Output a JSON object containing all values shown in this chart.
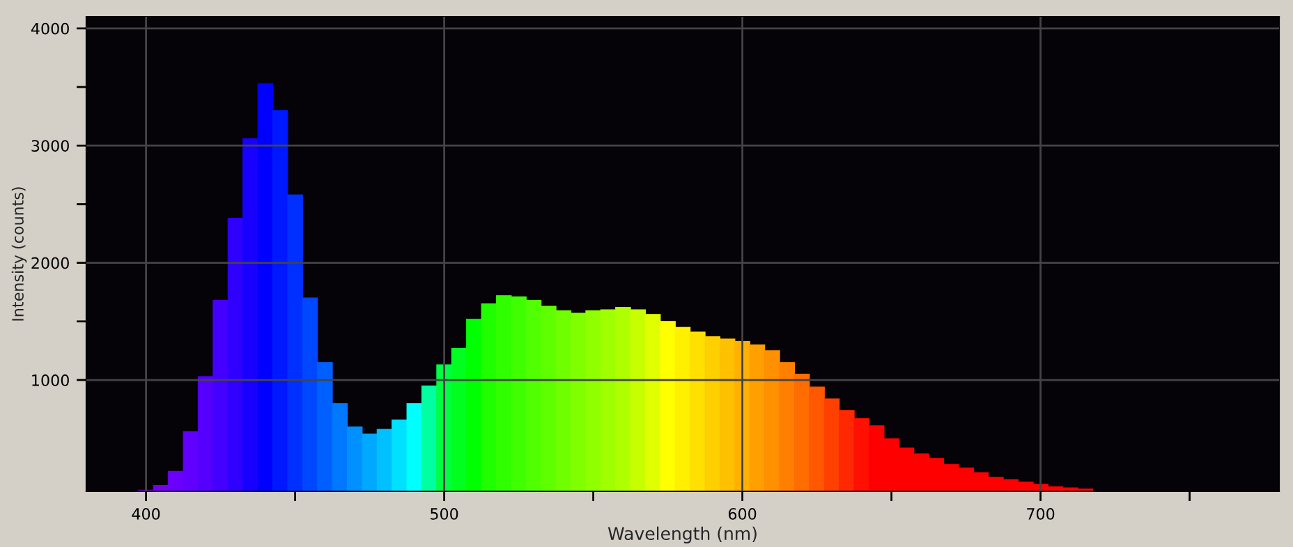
{
  "chart_data": {
    "type": "bar",
    "xlabel": "Wavelength (nm)",
    "ylabel": "Intensity (counts)",
    "x": [
      400,
      405,
      410,
      415,
      420,
      425,
      430,
      435,
      440,
      445,
      450,
      455,
      460,
      465,
      470,
      475,
      480,
      485,
      490,
      495,
      500,
      505,
      510,
      515,
      520,
      525,
      530,
      535,
      540,
      545,
      550,
      555,
      560,
      565,
      570,
      575,
      580,
      585,
      590,
      595,
      600,
      605,
      610,
      615,
      620,
      625,
      630,
      635,
      640,
      645,
      650,
      655,
      660,
      665,
      670,
      675,
      680,
      685,
      690,
      695,
      700,
      705,
      710,
      715
    ],
    "values": [
      60,
      100,
      220,
      560,
      1030,
      1680,
      2380,
      3060,
      3530,
      3300,
      2580,
      1700,
      1150,
      800,
      600,
      540,
      580,
      660,
      800,
      950,
      1130,
      1270,
      1520,
      1650,
      1720,
      1710,
      1680,
      1630,
      1590,
      1570,
      1590,
      1600,
      1620,
      1600,
      1560,
      1500,
      1450,
      1410,
      1370,
      1350,
      1330,
      1300,
      1250,
      1150,
      1050,
      940,
      840,
      740,
      670,
      610,
      500,
      420,
      370,
      330,
      280,
      250,
      210,
      170,
      150,
      130,
      110,
      90,
      80,
      70
    ],
    "colors": [
      "#7a00e0",
      "#7400f0",
      "#6c00ff",
      "#6200ff",
      "#5500ff",
      "#4400ff",
      "#3000ff",
      "#1800ff",
      "#0000ff",
      "#0018ff",
      "#0030ff",
      "#0048ff",
      "#0060ff",
      "#0078ff",
      "#0090ff",
      "#00a8ff",
      "#00c0ff",
      "#00e0ff",
      "#00ffff",
      "#00ffa0",
      "#00ff40",
      "#00ff20",
      "#00ff00",
      "#20ff00",
      "#30ff00",
      "#40ff00",
      "#50ff00",
      "#60ff00",
      "#70ff00",
      "#80ff00",
      "#90ff00",
      "#a0ff00",
      "#b0ff00",
      "#c8ff00",
      "#e0ff00",
      "#ffff00",
      "#fff000",
      "#ffe000",
      "#ffd000",
      "#ffc000",
      "#ffb000",
      "#ffa000",
      "#ff9000",
      "#ff8000",
      "#ff6c00",
      "#ff5800",
      "#ff4000",
      "#ff2800",
      "#ff1000",
      "#ff0000",
      "#ff0000",
      "#ff0000",
      "#ff0000",
      "#ff0000",
      "#ff0000",
      "#ff0000",
      "#ff0000",
      "#ff0000",
      "#ff0000",
      "#ff0000",
      "#ff0000",
      "#ff0000",
      "#ff0000",
      "#ff0000"
    ],
    "xlim": [
      380,
      780
    ],
    "ylim": [
      50,
      4100
    ],
    "xticks": [
      400,
      {
        "value": 450,
        "label": null
      },
      500,
      {
        "value": 550,
        "label": null
      },
      600,
      {
        "value": 650,
        "label": null
      },
      700,
      {
        "value": 750,
        "label": null
      }
    ],
    "yticks": [
      1000,
      {
        "value": 1500,
        "label": null
      },
      2000,
      {
        "value": 2500,
        "label": null
      },
      3000,
      {
        "value": 3500,
        "label": null
      },
      4000
    ],
    "grid": true,
    "legend": false
  }
}
